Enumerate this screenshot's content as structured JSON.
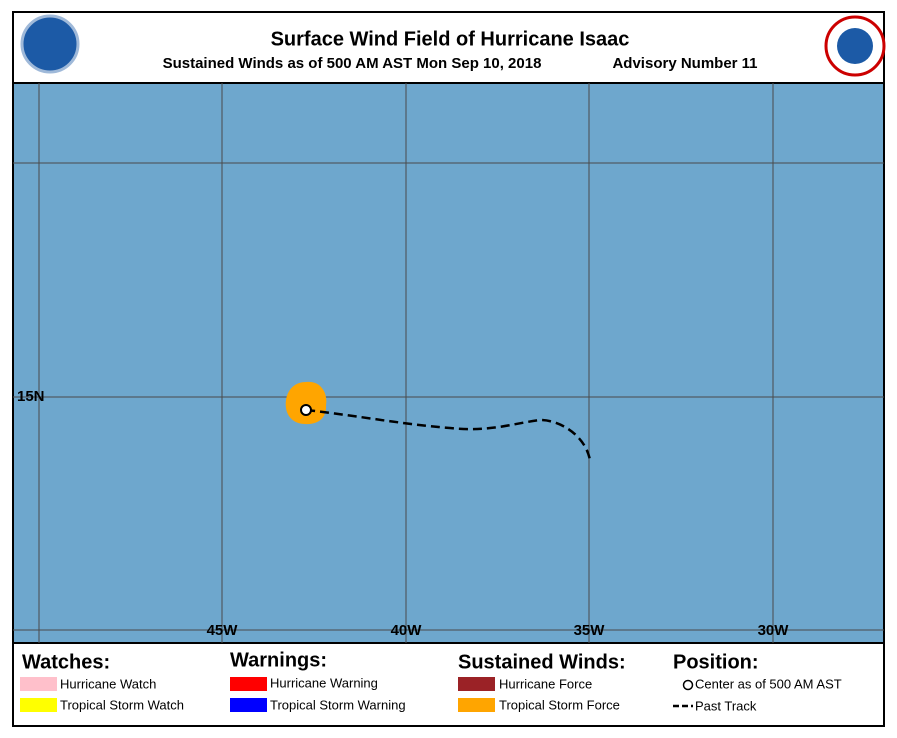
{
  "header": {
    "title": "Surface Wind Field of Hurricane Isaac",
    "subtitle": "Sustained Winds as of 500 AM AST Mon Sep 10, 2018",
    "advisory": "Advisory Number 11"
  },
  "map": {
    "longitude_labels": [
      "45W",
      "40W",
      "35W",
      "30W"
    ],
    "latitude_labels": [
      "15N"
    ]
  },
  "legend": {
    "watches": {
      "title": "Watches:",
      "items": [
        {
          "label": "Hurricane Watch",
          "color": "#ffc0cb"
        },
        {
          "label": "Tropical Storm Watch",
          "color": "#ffff00"
        }
      ]
    },
    "warnings": {
      "title": "Warnings:",
      "items": [
        {
          "label": "Hurricane Warning",
          "color": "#ff0000"
        },
        {
          "label": "Tropical Storm Warning",
          "color": "#0000ff"
        }
      ]
    },
    "winds": {
      "title": "Sustained Winds:",
      "items": [
        {
          "label": "Hurricane Force",
          "color": "#9b2226"
        },
        {
          "label": "Tropical Storm Force",
          "color": "#ffa500"
        }
      ]
    },
    "position": {
      "title": "Position:",
      "items": [
        {
          "label": "Center as of 500 AM AST"
        },
        {
          "label": "Past Track"
        }
      ]
    }
  }
}
